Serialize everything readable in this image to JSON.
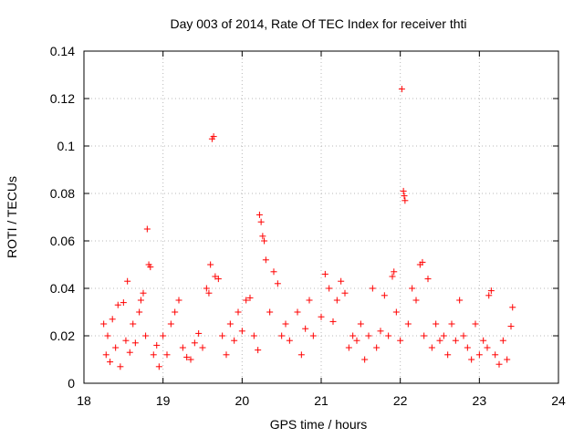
{
  "chart_data": {
    "type": "scatter",
    "title": "Day 003 of 2014, Rate Of TEC Index for receiver thti",
    "xlabel": "GPS time / hours",
    "ylabel": "ROTI / TECUs",
    "xlim": [
      18,
      24
    ],
    "ylim": [
      0,
      0.14
    ],
    "xticks": [
      18,
      19,
      20,
      21,
      22,
      23,
      24
    ],
    "yticks": [
      0,
      0.02,
      0.04,
      0.06,
      0.08,
      0.1,
      0.12,
      0.14
    ],
    "ytick_labels": [
      "0",
      "0.02",
      "0.04",
      "0.06",
      "0.08",
      "0.1",
      "0.12",
      "0.14"
    ],
    "grid": true,
    "marker": "+",
    "color": "#ff0000",
    "series": [
      {
        "name": "ROTI",
        "points": [
          [
            18.25,
            0.025
          ],
          [
            18.28,
            0.012
          ],
          [
            18.3,
            0.02
          ],
          [
            18.33,
            0.009
          ],
          [
            18.36,
            0.027
          ],
          [
            18.4,
            0.015
          ],
          [
            18.43,
            0.033
          ],
          [
            18.46,
            0.007
          ],
          [
            18.5,
            0.034
          ],
          [
            18.53,
            0.018
          ],
          [
            18.55,
            0.043
          ],
          [
            18.58,
            0.013
          ],
          [
            18.62,
            0.025
          ],
          [
            18.65,
            0.017
          ],
          [
            18.7,
            0.03
          ],
          [
            18.72,
            0.035
          ],
          [
            18.75,
            0.038
          ],
          [
            18.78,
            0.02
          ],
          [
            18.8,
            0.065
          ],
          [
            18.82,
            0.05
          ],
          [
            18.84,
            0.049
          ],
          [
            18.88,
            0.012
          ],
          [
            18.92,
            0.016
          ],
          [
            18.95,
            0.007
          ],
          [
            19.0,
            0.02
          ],
          [
            19.05,
            0.012
          ],
          [
            19.1,
            0.025
          ],
          [
            19.15,
            0.03
          ],
          [
            19.2,
            0.035
          ],
          [
            19.25,
            0.015
          ],
          [
            19.3,
            0.011
          ],
          [
            19.35,
            0.01
          ],
          [
            19.4,
            0.017
          ],
          [
            19.45,
            0.021
          ],
          [
            19.5,
            0.015
          ],
          [
            19.55,
            0.04
          ],
          [
            19.58,
            0.038
          ],
          [
            19.6,
            0.05
          ],
          [
            19.62,
            0.103
          ],
          [
            19.64,
            0.104
          ],
          [
            19.66,
            0.045
          ],
          [
            19.7,
            0.044
          ],
          [
            19.75,
            0.02
          ],
          [
            19.8,
            0.012
          ],
          [
            19.85,
            0.025
          ],
          [
            19.9,
            0.018
          ],
          [
            19.95,
            0.03
          ],
          [
            20.0,
            0.022
          ],
          [
            20.05,
            0.035
          ],
          [
            20.1,
            0.036
          ],
          [
            20.15,
            0.02
          ],
          [
            20.2,
            0.014
          ],
          [
            20.22,
            0.071
          ],
          [
            20.24,
            0.068
          ],
          [
            20.26,
            0.062
          ],
          [
            20.28,
            0.06
          ],
          [
            20.3,
            0.052
          ],
          [
            20.35,
            0.03
          ],
          [
            20.4,
            0.047
          ],
          [
            20.45,
            0.042
          ],
          [
            20.5,
            0.02
          ],
          [
            20.55,
            0.025
          ],
          [
            20.6,
            0.018
          ],
          [
            20.7,
            0.03
          ],
          [
            20.75,
            0.012
          ],
          [
            20.8,
            0.023
          ],
          [
            20.85,
            0.035
          ],
          [
            20.9,
            0.02
          ],
          [
            21.0,
            0.028
          ],
          [
            21.05,
            0.046
          ],
          [
            21.1,
            0.04
          ],
          [
            21.15,
            0.026
          ],
          [
            21.2,
            0.035
          ],
          [
            21.25,
            0.043
          ],
          [
            21.3,
            0.038
          ],
          [
            21.35,
            0.015
          ],
          [
            21.4,
            0.02
          ],
          [
            21.45,
            0.018
          ],
          [
            21.5,
            0.025
          ],
          [
            21.55,
            0.01
          ],
          [
            21.6,
            0.02
          ],
          [
            21.65,
            0.04
          ],
          [
            21.7,
            0.015
          ],
          [
            21.75,
            0.022
          ],
          [
            21.8,
            0.037
          ],
          [
            21.85,
            0.02
          ],
          [
            21.9,
            0.045
          ],
          [
            21.92,
            0.047
          ],
          [
            21.95,
            0.03
          ],
          [
            22.0,
            0.018
          ],
          [
            22.02,
            0.124
          ],
          [
            22.04,
            0.081
          ],
          [
            22.05,
            0.079
          ],
          [
            22.06,
            0.077
          ],
          [
            22.1,
            0.025
          ],
          [
            22.15,
            0.04
          ],
          [
            22.2,
            0.035
          ],
          [
            22.25,
            0.05
          ],
          [
            22.28,
            0.051
          ],
          [
            22.3,
            0.02
          ],
          [
            22.35,
            0.044
          ],
          [
            22.4,
            0.015
          ],
          [
            22.45,
            0.025
          ],
          [
            22.5,
            0.018
          ],
          [
            22.55,
            0.02
          ],
          [
            22.6,
            0.012
          ],
          [
            22.65,
            0.025
          ],
          [
            22.7,
            0.018
          ],
          [
            22.75,
            0.035
          ],
          [
            22.8,
            0.02
          ],
          [
            22.85,
            0.015
          ],
          [
            22.9,
            0.01
          ],
          [
            22.95,
            0.025
          ],
          [
            23.0,
            0.012
          ],
          [
            23.05,
            0.018
          ],
          [
            23.1,
            0.015
          ],
          [
            23.12,
            0.037
          ],
          [
            23.15,
            0.039
          ],
          [
            23.2,
            0.012
          ],
          [
            23.25,
            0.008
          ],
          [
            23.3,
            0.018
          ],
          [
            23.35,
            0.01
          ],
          [
            23.4,
            0.024
          ],
          [
            23.42,
            0.032
          ]
        ]
      }
    ]
  }
}
